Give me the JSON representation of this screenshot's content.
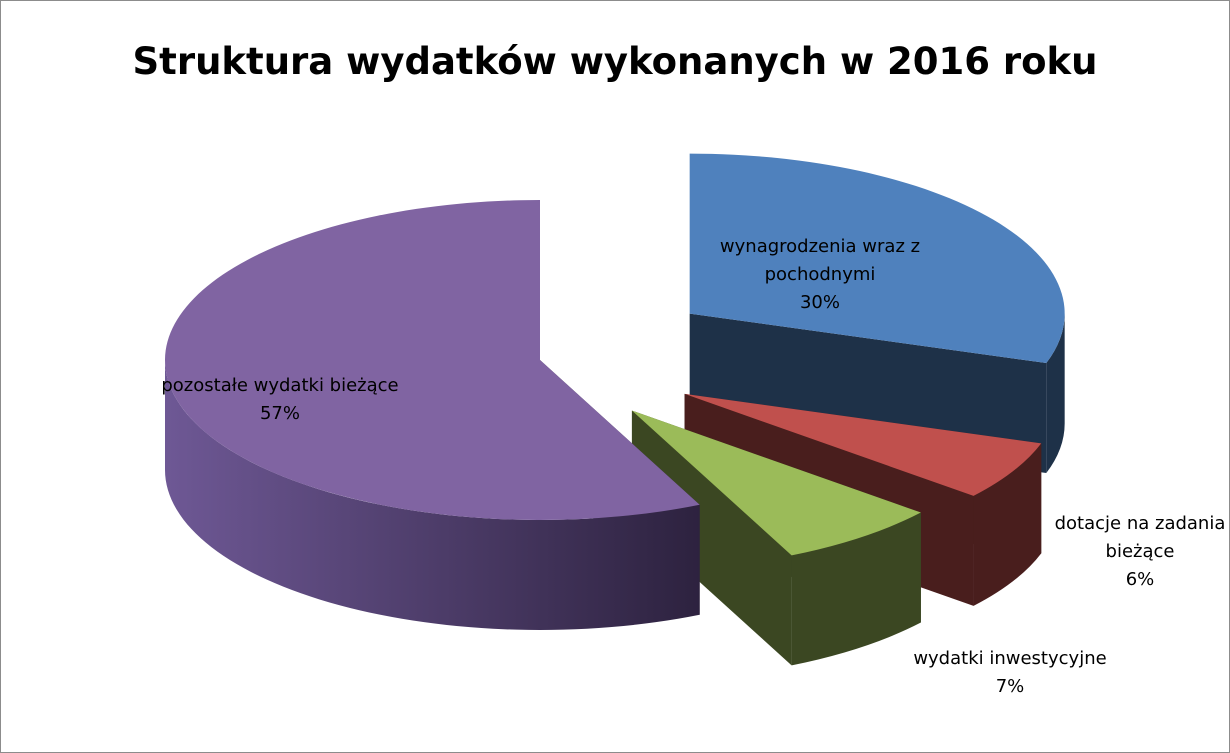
{
  "chart_data": {
    "type": "pie3d",
    "title": "Struktura wydatków wykonanych w 2016 roku",
    "categories": [
      "wynagrodzenia wraz z pochodnymi",
      "dotacje na zadania bieżące",
      "wydatki inwestycyjne",
      "pozostałe wydatki bieżące"
    ],
    "values": [
      30,
      6,
      7,
      57
    ],
    "value_labels": [
      "30%",
      "6%",
      "7%",
      "57%"
    ],
    "colors": [
      "#4f81bd",
      "#c0504d",
      "#9bbb59",
      "#8064a2"
    ]
  }
}
